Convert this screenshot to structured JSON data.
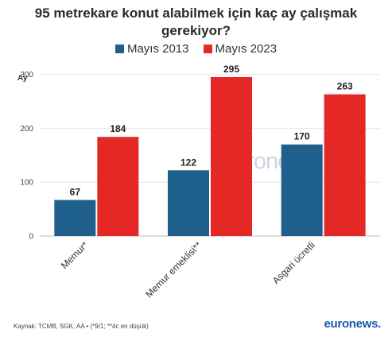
{
  "title_lines": [
    "95 metrekare konut alabilmek için kaç ay çalışmak",
    "gerekiyor?"
  ],
  "colors": {
    "series_1": "#1f5f8b",
    "series_2": "#e32826"
  },
  "chart_data": {
    "type": "bar",
    "ylabel": "Ay",
    "ylim": [
      0,
      320
    ],
    "yticks": [
      0,
      100,
      200,
      300
    ],
    "categories": [
      "Memur*",
      "Memur emeklisi**",
      "Asgari ücretli"
    ],
    "series": [
      {
        "name": "Mayıs 2013",
        "values": [
          67,
          122,
          170
        ]
      },
      {
        "name": "Mayıs 2023",
        "values": [
          184,
          295,
          263
        ]
      }
    ],
    "legend": "top-center",
    "grid": true
  },
  "watermark_text": "euronews.",
  "source_text": "Kaynak: TCMB, SGK, AA • (*9/1; **4c en düşük)",
  "logo_text": "euronews."
}
